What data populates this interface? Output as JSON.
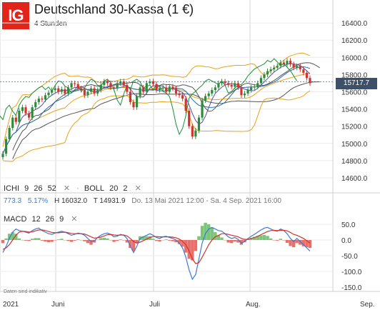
{
  "header": {
    "logo": "IG",
    "title": "Deutschland 30-Kassa (1 €)",
    "subtitle": "4 Stunden"
  },
  "indicators": {
    "ichi_label": "ICHI",
    "ichi_p1": "9",
    "ichi_p2": "26",
    "ichi_p3": "52",
    "boll_label": "BOLL",
    "boll_p1": "20",
    "boll_p2": "2",
    "close_x": "✕",
    "macd_label": "MACD",
    "macd_p1": "12",
    "macd_p2": "26",
    "macd_p3": "9"
  },
  "info": {
    "change": "773.3",
    "change_pct": "5.17%",
    "high": "H 16032.0",
    "low": "T 14931.9",
    "range": "Do. 13 Mai 2021 12:00 - Sa. 4 Sep. 2021 16:00"
  },
  "price_tag": "15717.7",
  "hint": "Daten sind indikativ",
  "colors": {
    "up": "#2e8b3a",
    "down": "#d0342c",
    "boll": "#e8a317",
    "ichi_a": "#5b4aa0",
    "ichi_b": "#555555",
    "macd": "#3a7bd5",
    "signal": "#d0342c",
    "hist_pos": "#7cc47a",
    "hist_neg": "#e8706a",
    "tag": "#3e5068",
    "logo": "#e1251b"
  },
  "chart_data": [
    {
      "type": "candlestick",
      "title": "Deutschland 30-Kassa (1 €)",
      "ylim": [
        14550,
        16550
      ],
      "y_ticks": [
        "16400.0",
        "16200.0",
        "16000.0",
        "15800.0",
        "15600.0",
        "15400.0",
        "15200.0",
        "15000.0",
        "14800.0",
        "14600.0"
      ],
      "x_ticks": [
        "2021",
        "Juni",
        "Juli",
        "Aug.",
        "Sep."
      ],
      "last": 15717.7,
      "close": [
        14880,
        15050,
        15180,
        15300,
        15250,
        15380,
        15420,
        15350,
        15300,
        15420,
        15480,
        15520,
        15510,
        15560,
        15590,
        15620,
        15640,
        15600,
        15630,
        15580,
        15650,
        15700,
        15690,
        15640,
        15620,
        15560,
        15600,
        15640,
        15580,
        15620,
        15680,
        15720,
        15700,
        15650,
        15640,
        15700,
        15720,
        15680,
        15600,
        15480,
        15420,
        15550,
        15650,
        15600,
        15700,
        15720,
        15690,
        15620,
        15640,
        15650,
        15600,
        15660,
        15640,
        15580,
        15560,
        15520,
        15380,
        15200,
        15080,
        15150,
        15300,
        15500,
        15550,
        15580,
        15620,
        15650,
        15700,
        15720,
        15700,
        15680,
        15660,
        15700,
        15650,
        15560,
        15580,
        15620,
        15650,
        15660,
        15700,
        15760,
        15800,
        15840,
        15860,
        15880,
        15900,
        15940,
        15920,
        15960,
        15920,
        15880,
        15900,
        15860,
        15820,
        15760,
        15700
      ]
    },
    {
      "type": "bar",
      "title": "MACD",
      "ylim": [
        -150,
        50
      ],
      "y_ticks": [
        "50.0",
        "0.0",
        "-50.0",
        "-100.0",
        "-150.0"
      ],
      "series": [
        {
          "name": "MACD",
          "values": [
            -40,
            -20,
            5,
            25,
            35,
            30,
            28,
            25,
            22,
            30,
            35,
            38,
            30,
            25,
            20,
            18,
            22,
            25,
            28,
            25,
            20,
            15,
            18,
            22,
            20,
            15,
            5,
            -5,
            -2,
            8,
            15,
            20,
            22,
            18,
            10,
            12,
            18,
            15,
            5,
            -20,
            -40,
            -20,
            5,
            10,
            15,
            20,
            15,
            8,
            5,
            10,
            12,
            8,
            5,
            0,
            -10,
            -25,
            -55,
            -95,
            -125,
            -110,
            -60,
            -10,
            20,
            35,
            40,
            35,
            30,
            28,
            20,
            10,
            5,
            8,
            2,
            -10,
            -5,
            5,
            12,
            18,
            25,
            32,
            38,
            40,
            35,
            30,
            28,
            35,
            30,
            20,
            5,
            -5,
            5,
            -5,
            -15,
            -25,
            -35
          ]
        },
        {
          "name": "Signal",
          "values": [
            -30,
            -25,
            -15,
            0,
            15,
            25,
            28,
            27,
            25,
            26,
            29,
            32,
            32,
            30,
            27,
            24,
            23,
            23,
            24,
            25,
            23,
            21,
            20,
            20,
            20,
            19,
            15,
            10,
            6,
            7,
            9,
            13,
            17,
            18,
            16,
            15,
            16,
            16,
            13,
            5,
            -5,
            -10,
            -7,
            -2,
            3,
            8,
            11,
            11,
            10,
            10,
            10,
            10,
            9,
            7,
            3,
            -4,
            -15,
            -35,
            -60,
            -75,
            -72,
            -55,
            -35,
            -15,
            0,
            10,
            15,
            20,
            20,
            18,
            15,
            13,
            10,
            5,
            2,
            2,
            5,
            8,
            12,
            17,
            22,
            27,
            30,
            31,
            30,
            31,
            31,
            29,
            24,
            18,
            15,
            10,
            5,
            -2,
            -10
          ]
        }
      ]
    }
  ]
}
